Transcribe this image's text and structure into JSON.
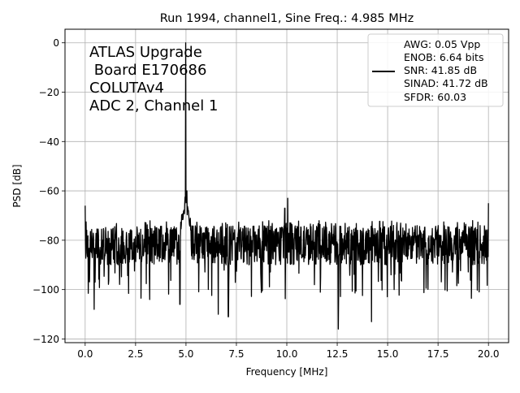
{
  "chart_data": {
    "type": "line",
    "title": "Run 1994, channel1, Sine Freq.: 4.985 MHz",
    "xlabel": "Frequency [MHz]",
    "ylabel": "PSD [dB]",
    "xlim": [
      -1.0,
      21.0
    ],
    "ylim": [
      -121.5,
      5.5
    ],
    "xticks": [
      0.0,
      2.5,
      5.0,
      7.5,
      10.0,
      12.5,
      15.0,
      17.5,
      20.0
    ],
    "xtick_labels": [
      "0.0",
      "2.5",
      "5.0",
      "7.5",
      "10.0",
      "12.5",
      "15.0",
      "17.5",
      "20.0"
    ],
    "yticks": [
      0,
      -20,
      -40,
      -60,
      -80,
      -100,
      -120
    ],
    "ytick_labels": [
      "0",
      "−20",
      "−40",
      "−60",
      "−80",
      "−100",
      "−120"
    ],
    "grid": true,
    "annotation_lines": [
      "ATLAS Upgrade",
      " Board E170686",
      "COLUTAv4",
      "ADC 2, Channel 1"
    ],
    "legend": {
      "placement": "top-right",
      "lines": [
        "AWG: 0.05 Vpp",
        "ENOB: 6.64 bits",
        "SNR: 41.85 dB",
        "SINAD: 41.72 dB",
        "SFDR: 60.03"
      ]
    },
    "series": [
      {
        "color": "#000000",
        "noise_floor_db": -82,
        "peak": {
          "x": 4.985,
          "y": 0
        },
        "notable_points": [
          {
            "x": 0.0,
            "y": -66
          },
          {
            "x": 0.45,
            "y": -108
          },
          {
            "x": 3.2,
            "y": -104
          },
          {
            "x": 4.7,
            "y": -106
          },
          {
            "x": 5.05,
            "y": -60
          },
          {
            "x": 6.6,
            "y": -110
          },
          {
            "x": 7.1,
            "y": -111
          },
          {
            "x": 9.9,
            "y": -67
          },
          {
            "x": 10.05,
            "y": -63
          },
          {
            "x": 12.55,
            "y": -116
          },
          {
            "x": 14.2,
            "y": -113
          },
          {
            "x": 20.0,
            "y": -65
          }
        ]
      }
    ]
  }
}
